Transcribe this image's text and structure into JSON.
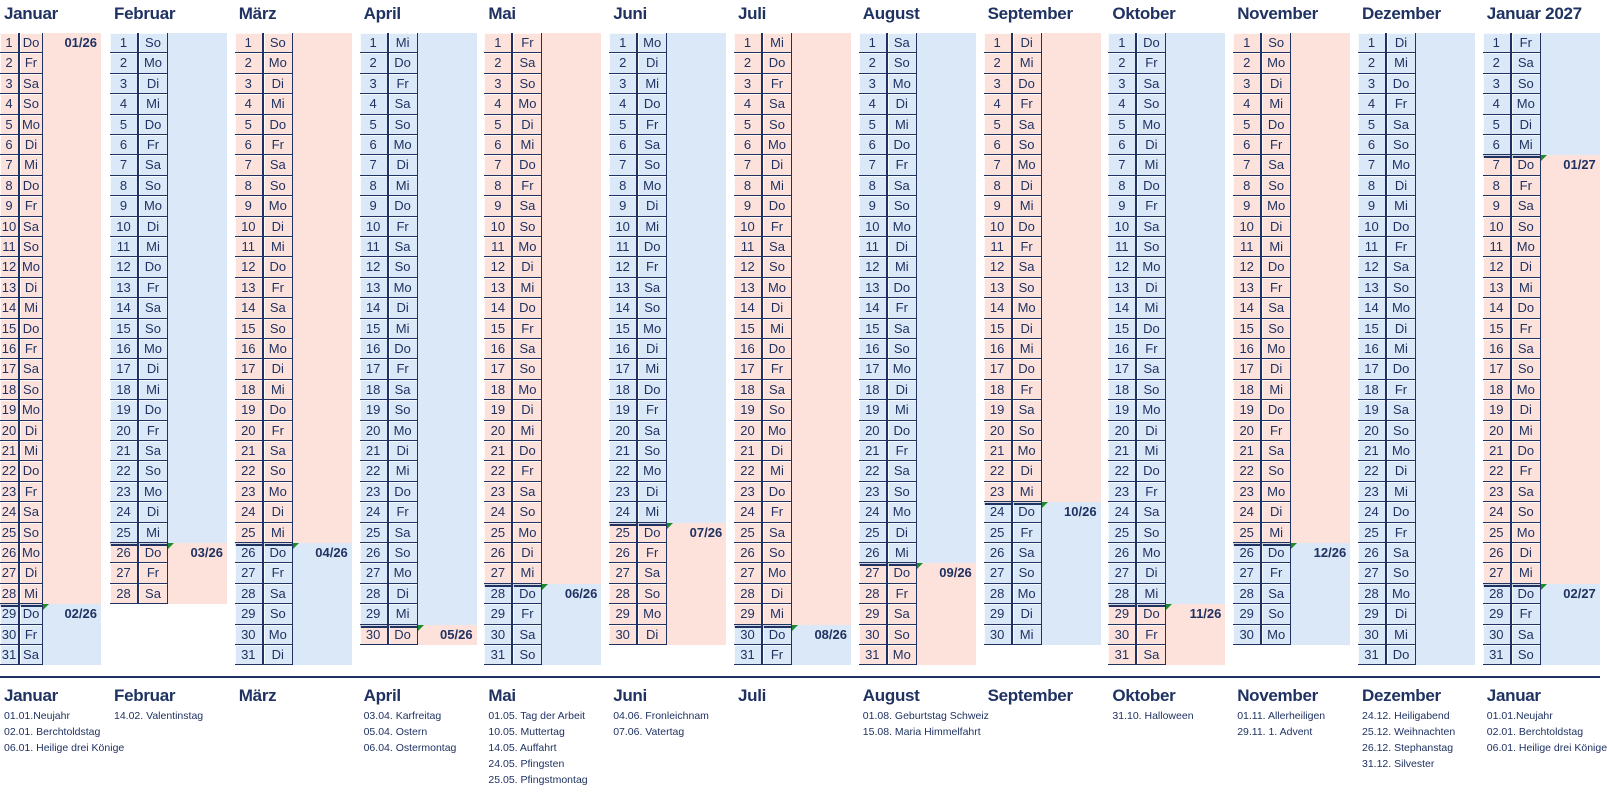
{
  "weekday_names": [
    "Mo",
    "Di",
    "Mi",
    "Do",
    "Fr",
    "Sa",
    "So"
  ],
  "colors": {
    "pink": "#fde2dc",
    "blue": "#dae8f7",
    "navy": "#1f3262",
    "marker": "#1e8a2e"
  },
  "months": [
    {
      "name": "Januar",
      "first_weekday": "Do",
      "length": 31
    },
    {
      "name": "Februar",
      "first_weekday": "So",
      "length": 28
    },
    {
      "name": "März",
      "first_weekday": "So",
      "length": 31
    },
    {
      "name": "April",
      "first_weekday": "Mi",
      "length": 30
    },
    {
      "name": "Mai",
      "first_weekday": "Fr",
      "length": 31
    },
    {
      "name": "Juni",
      "first_weekday": "Mo",
      "length": 30
    },
    {
      "name": "Juli",
      "first_weekday": "Mi",
      "length": 31
    },
    {
      "name": "August",
      "first_weekday": "Sa",
      "length": 31
    },
    {
      "name": "September",
      "first_weekday": "Di",
      "length": 30
    },
    {
      "name": "Oktober",
      "first_weekday": "Do",
      "length": 31
    },
    {
      "name": "November",
      "first_weekday": "So",
      "length": 30
    },
    {
      "name": "Dezember",
      "first_weekday": "Di",
      "length": 31
    },
    {
      "name": "Januar 2027",
      "first_weekday": "Fr",
      "length": 31
    }
  ],
  "periods": [
    {
      "label": "01/26",
      "month": 0,
      "day": 1,
      "color": "pink"
    },
    {
      "label": "02/26",
      "month": 0,
      "day": 29,
      "color": "blue"
    },
    {
      "label": "03/26",
      "month": 1,
      "day": 26,
      "color": "pink"
    },
    {
      "label": "04/26",
      "month": 2,
      "day": 26,
      "color": "blue"
    },
    {
      "label": "05/26",
      "month": 3,
      "day": 30,
      "color": "pink"
    },
    {
      "label": "06/26",
      "month": 4,
      "day": 28,
      "color": "blue"
    },
    {
      "label": "07/26",
      "month": 5,
      "day": 25,
      "color": "pink"
    },
    {
      "label": "08/26",
      "month": 6,
      "day": 30,
      "color": "blue"
    },
    {
      "label": "09/26",
      "month": 7,
      "day": 27,
      "color": "pink"
    },
    {
      "label": "10/26",
      "month": 8,
      "day": 24,
      "color": "blue"
    },
    {
      "label": "11/26",
      "month": 9,
      "day": 29,
      "color": "pink"
    },
    {
      "label": "12/26",
      "month": 10,
      "day": 26,
      "color": "blue"
    },
    {
      "label": "01/27",
      "month": 12,
      "day": 7,
      "color": "pink"
    },
    {
      "label": "02/27",
      "month": 12,
      "day": 28,
      "color": "blue"
    }
  ],
  "holidays": [
    {
      "month": "Januar",
      "items": [
        "01.01.Neujahr",
        "02.01. Berchtoldstag",
        "06.01. Heilige drei Könige"
      ]
    },
    {
      "month": "Februar",
      "items": [
        "14.02. Valentinstag"
      ]
    },
    {
      "month": "März",
      "items": []
    },
    {
      "month": "April",
      "items": [
        "03.04. Karfreitag",
        "05.04. Ostern",
        "06.04. Ostermontag"
      ]
    },
    {
      "month": "Mai",
      "items": [
        "01.05. Tag der Arbeit",
        "10.05. Muttertag",
        "14.05. Auffahrt",
        "24.05. Pfingsten",
        "25.05. Pfingstmontag"
      ]
    },
    {
      "month": "Juni",
      "items": [
        "04.06. Fronleichnam",
        "07.06. Vatertag"
      ]
    },
    {
      "month": "Juli",
      "items": []
    },
    {
      "month": "August",
      "items": [
        "01.08. Geburtstag Schweiz",
        "15.08. Maria Himmelfahrt"
      ]
    },
    {
      "month": "September",
      "items": []
    },
    {
      "month": "Oktober",
      "items": [
        "31.10. Halloween"
      ]
    },
    {
      "month": "November",
      "items": [
        "01.11. Allerheiligen",
        "29.11. 1. Advent"
      ]
    },
    {
      "month": "Dezember",
      "items": [
        "24.12. Heiligabend",
        "25.12. Weihnachten",
        "26.12. Stephanstag",
        "31.12. Silvester"
      ]
    },
    {
      "month": "Januar",
      "items": [
        "01.01.Neujahr",
        "02.01. Berchtoldstag",
        "06.01. Heilige drei Könige"
      ]
    }
  ]
}
